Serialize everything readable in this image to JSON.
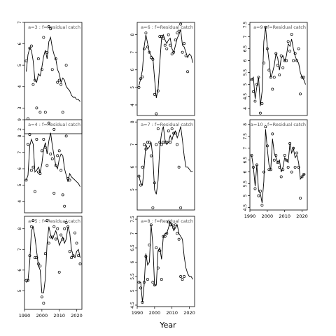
{
  "figure": {
    "xlabel": "Year"
  },
  "chart_data": [
    {
      "type": "line",
      "title": "a=3  :  f=Residual catch",
      "xlim": [
        1990,
        2023
      ],
      "ylim": [
        1.8,
        7.0
      ],
      "xticks": [],
      "yticks": [
        2,
        3,
        4,
        5,
        6,
        7
      ],
      "x": [
        1991,
        1992,
        1993,
        1994,
        1995,
        1996,
        1997,
        1998,
        1999,
        2000,
        2001,
        2002,
        2003,
        2004,
        2005,
        2006,
        2007,
        2008,
        2009,
        2010,
        2011,
        2012,
        2013,
        2014,
        2015,
        2016,
        2017,
        2018,
        2019,
        2020,
        2021,
        2022
      ],
      "observed": [
        5.2,
        2.5,
        5.8,
        5.9,
        4.1,
        4.3,
        3.0,
        5.3,
        2.8,
        4.8,
        6.3,
        2.8,
        5.6,
        6.8,
        6.7,
        4.8,
        2.0,
        5.3,
        4.2,
        4.3,
        4.1,
        2.8,
        null,
        5.0,
        null,
        null,
        null,
        null,
        null,
        null,
        null,
        null
      ],
      "fitted": [
        4.7,
        5.5,
        5.8,
        5.7,
        5.2,
        4.3,
        4.2,
        4.6,
        4.5,
        4.9,
        5.4,
        5.7,
        5.3,
        6.1,
        6.3,
        5.8,
        5.5,
        5.3,
        4.8,
        4.6,
        4.2,
        4.4,
        4.3,
        4.0,
        3.9,
        3.8,
        3.6,
        3.5,
        3.5,
        3.4,
        3.4,
        3.3
      ]
    },
    {
      "type": "line",
      "title": "a=4  :  f=Residual catch",
      "xlim": [
        1990,
        2023
      ],
      "ylim": [
        3.3,
        9.0
      ],
      "xticks": [],
      "yticks": [
        4,
        5,
        6,
        7,
        8,
        9
      ],
      "x": [
        1991,
        1992,
        1993,
        1994,
        1995,
        1996,
        1997,
        1998,
        1999,
        2000,
        2001,
        2002,
        2003,
        2004,
        2005,
        2006,
        2007,
        2008,
        2009,
        2010,
        2011,
        2012,
        2013,
        2014,
        2015,
        2016,
        2017,
        2018,
        2019,
        2020,
        2021,
        2022
      ],
      "observed": [
        5.3,
        7.5,
        8.1,
        5.9,
        6.1,
        4.6,
        7.8,
        5.8,
        5.7,
        7.1,
        7.8,
        7.3,
        6.2,
        8.8,
        6.9,
        6.6,
        4.5,
        6.2,
        6.8,
        7.1,
        5.9,
        4.4,
        3.7,
        8.0,
        5.4,
        5.3,
        null,
        null,
        null,
        null,
        null,
        null
      ],
      "fitted": [
        5.3,
        5.6,
        7.4,
        7.8,
        7.5,
        5.8,
        5.9,
        6.1,
        5.8,
        6.3,
        7.2,
        7.6,
        6.9,
        7.7,
        8.2,
        7.4,
        6.8,
        6.2,
        6.0,
        6.6,
        6.9,
        6.8,
        6.0,
        5.6,
        5.2,
        5.7,
        5.5,
        5.4,
        5.3,
        5.2,
        5.1,
        4.9
      ]
    },
    {
      "type": "line",
      "title": "a=5  :  f=Residual catch",
      "xlim": [
        1990,
        2023
      ],
      "ylim": [
        4.1,
        8.6
      ],
      "xticks": [
        1990,
        2000,
        2010,
        2020
      ],
      "yticks": [
        5,
        6,
        7,
        8
      ],
      "x": [
        1991,
        1992,
        1993,
        1994,
        1995,
        1996,
        1997,
        1998,
        1999,
        2000,
        2001,
        2002,
        2003,
        2004,
        2005,
        2006,
        2007,
        2008,
        2009,
        2010,
        2011,
        2012,
        2013,
        2014,
        2015,
        2016,
        2017,
        2018,
        2019,
        2020,
        2021,
        2022
      ],
      "observed": [
        5.5,
        5.5,
        6.7,
        8.1,
        8.4,
        6.6,
        6.6,
        6.3,
        6.2,
        4.7,
        4.4,
        6.8,
        8.4,
        7.3,
        7.6,
        7.6,
        8.1,
        7.5,
        8.0,
        5.9,
        7.7,
        7.5,
        8.0,
        8.3,
        8.1,
        6.9,
        6.6,
        6.7,
        7.8,
        7.3,
        6.7,
        6.3
      ],
      "fitted": [
        5.4,
        5.5,
        6.4,
        7.9,
        8.1,
        7.6,
        6.9,
        6.2,
        6.0,
        4.9,
        4.9,
        5.6,
        7.3,
        8.1,
        7.7,
        7.5,
        7.7,
        7.9,
        7.6,
        7.2,
        7.4,
        7.6,
        7.3,
        7.5,
        8.1,
        7.8,
        7.0,
        6.7,
        6.6,
        6.9,
        7.0,
        6.6
      ]
    },
    {
      "type": "line",
      "title": "a=6  :  f=Residual catch",
      "xlim": [
        1990,
        2023
      ],
      "ylim": [
        3.4,
        8.7
      ],
      "xticks": [],
      "yticks": [
        4,
        5,
        6,
        7,
        8
      ],
      "x": [
        1991,
        1992,
        1993,
        1994,
        1995,
        1996,
        1997,
        1998,
        1999,
        2000,
        2001,
        2002,
        2003,
        2004,
        2005,
        2006,
        2007,
        2008,
        2009,
        2010,
        2011,
        2012,
        2013,
        2014,
        2015,
        2016,
        2017,
        2018,
        2019,
        2020,
        2021,
        2022
      ],
      "observed": [
        5.0,
        5.5,
        5.6,
        7.2,
        8.1,
        7.3,
        7.0,
        6.7,
        6.6,
        4.6,
        3.5,
        4.8,
        7.9,
        7.9,
        7.8,
        7.4,
        7.2,
        8.0,
        7.4,
        6.9,
        7.0,
        7.7,
        8.1,
        8.2,
        8.6,
        7.0,
        7.5,
        6.8,
        5.9,
        null,
        null,
        null
      ],
      "fitted": [
        5.1,
        5.5,
        6.0,
        7.3,
        8.0,
        7.5,
        7.0,
        6.8,
        6.7,
        5.5,
        4.4,
        4.9,
        6.4,
        7.8,
        8.0,
        7.7,
        7.5,
        7.7,
        7.8,
        7.2,
        7.0,
        7.4,
        7.8,
        8.0,
        8.3,
        7.4,
        7.3,
        7.0,
        6.7,
        6.9,
        6.8,
        6.4
      ]
    },
    {
      "type": "line",
      "title": "a=7  :  f=Residual catch",
      "xlim": [
        1990,
        2023
      ],
      "ylim": [
        4.1,
        8.1
      ],
      "xticks": [],
      "yticks": [
        5,
        6,
        7,
        8
      ],
      "x": [
        1991,
        1992,
        1993,
        1994,
        1995,
        1996,
        1997,
        1998,
        1999,
        2000,
        2001,
        2002,
        2003,
        2004,
        2005,
        2006,
        2007,
        2008,
        2009,
        2010,
        2011,
        2012,
        2013,
        2014,
        2015,
        2016,
        2017,
        2018,
        2019,
        2020,
        2021,
        2022
      ],
      "observed": [
        5.6,
        5.2,
        6.0,
        7.0,
        6.8,
        7.1,
        7.1,
        6.5,
        4.2,
        5.3,
        7.0,
        7.7,
        7.1,
        7.0,
        7.1,
        7.1,
        7.1,
        7.6,
        7.1,
        7.7,
        7.5,
        7.5,
        7.0,
        6.0,
        4.2,
        null,
        null,
        null,
        null,
        null,
        null,
        null
      ],
      "fitted": [
        5.6,
        5.3,
        5.2,
        6.0,
        7.0,
        6.8,
        6.9,
        7.1,
        6.4,
        5.0,
        4.8,
        5.4,
        6.9,
        7.5,
        7.8,
        7.2,
        7.0,
        7.1,
        7.4,
        7.2,
        7.5,
        7.6,
        7.3,
        7.5,
        7.8,
        7.2,
        6.5,
        6.0,
        6.0,
        5.9,
        5.8,
        5.8
      ]
    },
    {
      "type": "line",
      "title": "a=8  :  f=Residual catch",
      "xlim": [
        1990,
        2023
      ],
      "ylim": [
        4.45,
        7.6
      ],
      "xticks": [
        1990,
        2000,
        2010,
        2020
      ],
      "yticks": [
        4.5,
        5.0,
        5.5,
        6.0,
        6.5,
        7.0,
        7.5
      ],
      "x": [
        1991,
        1992,
        1993,
        1994,
        1995,
        1996,
        1997,
        1998,
        1999,
        2000,
        2001,
        2002,
        2003,
        2004,
        2005,
        2006,
        2007,
        2008,
        2009,
        2010,
        2011,
        2012,
        2013,
        2014,
        2015,
        2016,
        2017,
        2018,
        2019,
        2020,
        2021,
        2022
      ],
      "observed": [
        5.3,
        5.1,
        4.6,
        5.3,
        6.2,
        5.4,
        6.6,
        7.3,
        5.3,
        5.2,
        6.5,
        5.8,
        6.4,
        5.4,
        6.9,
        6.9,
        7.0,
        7.4,
        7.3,
        7.3,
        7.2,
        7.3,
        7.0,
        6.8,
        5.5,
        5.4,
        5.5,
        null,
        null,
        null,
        null,
        null
      ],
      "fitted": [
        5.3,
        5.3,
        4.6,
        5.2,
        6.3,
        5.9,
        6.0,
        7.3,
        6.6,
        5.2,
        5.2,
        6.4,
        6.5,
        6.1,
        6.9,
        7.0,
        7.0,
        7.2,
        7.4,
        7.3,
        7.1,
        7.2,
        7.3,
        7.0,
        6.9,
        6.8,
        6.2,
        5.8,
        5.6,
        5.5,
        5.5,
        5.4
      ]
    },
    {
      "type": "line",
      "title": "a=9  :  f=Residual catch",
      "xlim": [
        1990,
        2023
      ],
      "ylim": [
        3.7,
        7.6
      ],
      "xticks": [],
      "yticks": [
        4.0,
        4.5,
        5.0,
        5.5,
        6.0,
        6.5,
        7.0,
        7.5
      ],
      "x": [
        1991,
        1992,
        1993,
        1994,
        1995,
        1996,
        1997,
        1998,
        1999,
        2000,
        2001,
        2002,
        2003,
        2004,
        2005,
        2006,
        2007,
        2008,
        2009,
        2010,
        2011,
        2012,
        2013,
        2014,
        2015,
        2016,
        2017,
        2018,
        2019,
        2020,
        2021,
        2022
      ],
      "observed": [
        5.2,
        4.7,
        4.3,
        5.0,
        5.3,
        3.8,
        4.2,
        5.9,
        7.4,
        6.5,
        5.6,
        5.3,
        4.8,
        5.3,
        6.3,
        5.8,
        5.4,
        6.2,
        5.7,
        6.0,
        6.0,
        6.8,
        6.4,
        7.1,
        6.0,
        6.3,
        6.0,
        6.5,
        4.6,
        5.3,
        5.3,
        null
      ],
      "fitted": [
        5.2,
        5.3,
        4.4,
        4.9,
        5.3,
        4.1,
        4.7,
        6.8,
        7.4,
        6.6,
        6.0,
        5.3,
        5.5,
        5.8,
        6.3,
        6.1,
        5.6,
        6.1,
        6.2,
        6.0,
        6.2,
        6.7,
        6.6,
        6.9,
        6.5,
        6.2,
        6.0,
        5.9,
        5.5,
        5.3,
        5.2,
        5.0
      ]
    },
    {
      "type": "line",
      "title": "a=10  :  f=Residual catch",
      "xlim": [
        1990,
        2023
      ],
      "ylim": [
        4.4,
        8.2
      ],
      "xticks": [
        1990,
        2000,
        2010,
        2020
      ],
      "yticks": [
        4.5,
        5.0,
        5.5,
        6.0,
        6.5,
        7.0,
        7.5,
        8.0
      ],
      "x": [
        1991,
        1992,
        1993,
        1994,
        1995,
        1996,
        1997,
        1998,
        1999,
        2000,
        2001,
        2002,
        2003,
        2004,
        2005,
        2006,
        2007,
        2008,
        2009,
        2010,
        2011,
        2012,
        2013,
        2014,
        2015,
        2016,
        2017,
        2018,
        2019,
        2020,
        2021,
        2022
      ],
      "observed": [
        6.7,
        6.2,
        5.3,
        6.3,
        5.0,
        5.2,
        4.6,
        6.0,
        7.9,
        7.1,
        6.1,
        6.1,
        7.6,
        6.5,
        6.7,
        6.4,
        6.2,
        5.8,
        6.1,
        6.7,
        6.5,
        6.2,
        7.2,
        6.0,
        7.0,
        6.2,
        6.8,
        6.2,
        4.9,
        5.8,
        5.9,
        null
      ],
      "fitted": [
        6.7,
        6.2,
        5.4,
        6.3,
        5.2,
        5.1,
        4.7,
        5.6,
        7.8,
        7.0,
        6.3,
        6.1,
        7.4,
        6.8,
        6.6,
        6.4,
        6.5,
        6.0,
        6.2,
        6.6,
        6.5,
        6.4,
        7.2,
        6.8,
        7.0,
        6.6,
        6.7,
        6.4,
        5.7,
        5.8,
        5.9,
        5.9
      ]
    }
  ]
}
